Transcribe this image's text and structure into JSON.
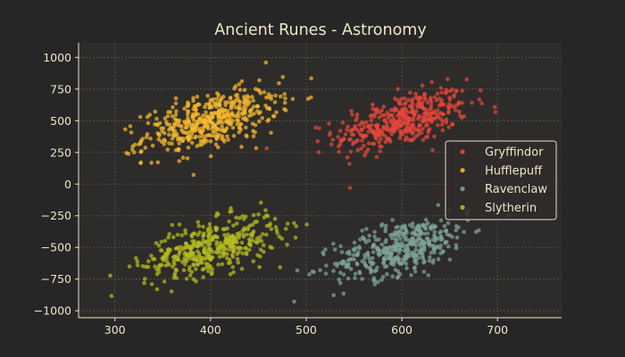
{
  "chart_data": {
    "type": "scatter",
    "title": "Ancient Runes - Astronomy",
    "xlabel": "",
    "ylabel": "",
    "xlim": [
      262,
      767
    ],
    "ylim": [
      -1055,
      1115
    ],
    "x_ticks": [
      300,
      400,
      500,
      600,
      700
    ],
    "y_ticks": [
      -1000,
      -750,
      -500,
      -250,
      0,
      250,
      500,
      750,
      1000
    ],
    "grid": true,
    "legend_position": "right",
    "series": [
      {
        "name": "Gryffindor",
        "color": "#e8463a",
        "center": [
          600,
          500
        ],
        "spread": [
          35,
          120
        ],
        "count": 420
      },
      {
        "name": "Hufflepuff",
        "color": "#f5b82e",
        "center": [
          400,
          500
        ],
        "spread": [
          35,
          120
        ],
        "count": 480
      },
      {
        "name": "Ravenclaw",
        "color": "#7fa39a",
        "center": [
          600,
          -500
        ],
        "spread": [
          35,
          120
        ],
        "count": 420
      },
      {
        "name": "Slytherin",
        "color": "#b6bb1f",
        "center": [
          400,
          -500
        ],
        "spread": [
          35,
          120
        ],
        "count": 420
      }
    ]
  }
}
